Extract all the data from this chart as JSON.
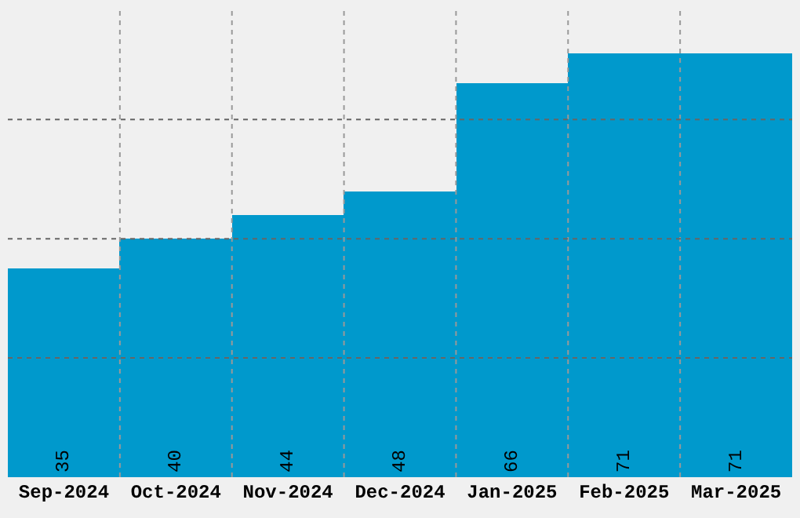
{
  "chart_data": {
    "type": "bar",
    "categories": [
      "Sep-2024",
      "Oct-2024",
      "Nov-2024",
      "Dec-2024",
      "Jan-2025",
      "Feb-2025",
      "Mar-2025"
    ],
    "values": [
      35,
      40,
      44,
      48,
      66,
      71,
      71
    ],
    "color": "#0099cc",
    "ylim": [
      0,
      79
    ],
    "yticks": [
      {
        "value": 20,
        "label": null
      },
      {
        "value": 40,
        "label": null
      },
      {
        "value": 60,
        "label": null
      }
    ],
    "tick_labels": "x",
    "grid": true,
    "data_labels": true
  }
}
